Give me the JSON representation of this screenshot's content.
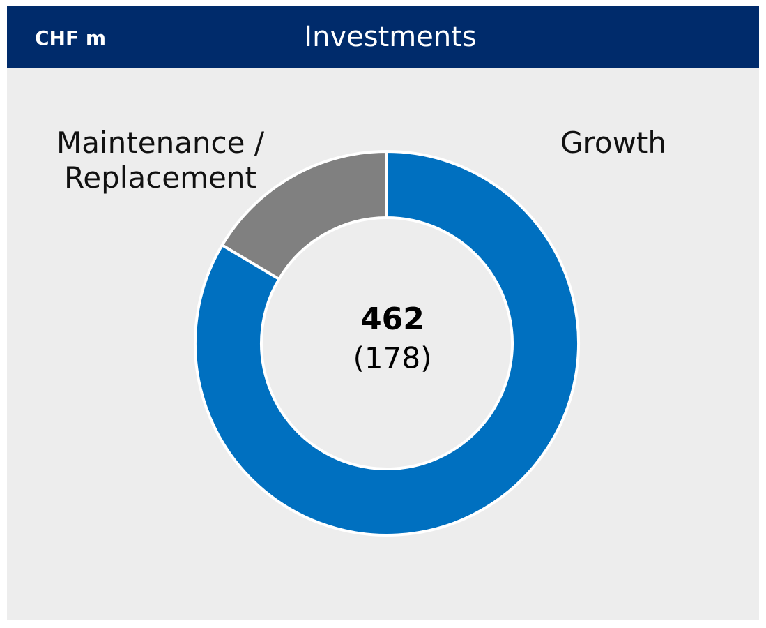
{
  "chart_data": {
    "type": "donut",
    "unit_label": "CHF m",
    "title": "Investments",
    "categories": [
      "Growth",
      "Maintenance / Replacement"
    ],
    "values": [
      386,
      76
    ],
    "colors": [
      "#0070c0",
      "#808080"
    ],
    "center_value": "462",
    "center_prior": "(178)"
  }
}
